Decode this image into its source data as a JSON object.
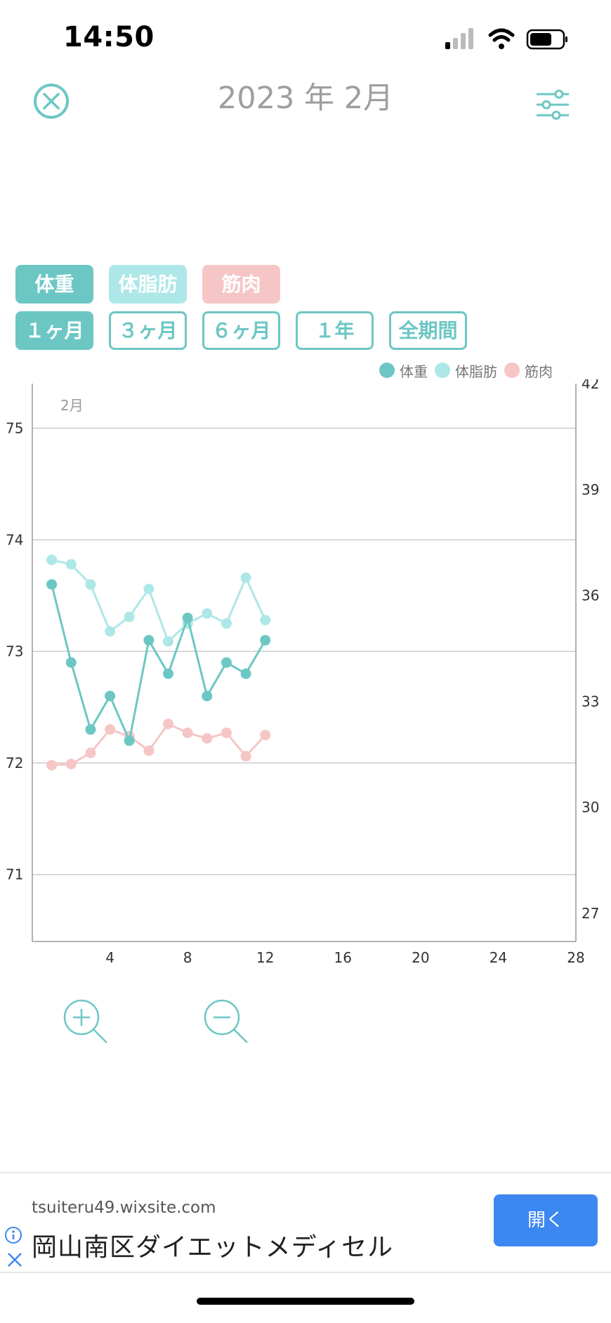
{
  "status_bar": {
    "time": "14:50"
  },
  "header": {
    "title": "2023 年 2月",
    "close_icon": "close-circle-icon",
    "filter_icon": "sliders-icon"
  },
  "metric_tabs": [
    {
      "label": "体重",
      "state": "selected",
      "color": "#6cc7c4"
    },
    {
      "label": "体脂肪",
      "state": "selected",
      "color": "#aee7e8"
    },
    {
      "label": "筋肉",
      "state": "selected",
      "color": "#f5c6c5"
    }
  ],
  "period_tabs": [
    {
      "label": "１ヶ月",
      "state": "selected"
    },
    {
      "label": "３ヶ月",
      "state": "unselected"
    },
    {
      "label": "６ヶ月",
      "state": "unselected"
    },
    {
      "label": "１年",
      "state": "unselected"
    },
    {
      "label": "全期間",
      "state": "unselected"
    }
  ],
  "legend": [
    {
      "label": "体重",
      "color": "#6cc7c4"
    },
    {
      "label": "体脂肪",
      "color": "#aee7e8"
    },
    {
      "label": "筋肉",
      "color": "#f5c6c5"
    }
  ],
  "chart_data": {
    "type": "line",
    "month_label": "2月",
    "x_ticks": [
      4,
      8,
      12,
      16,
      20,
      24,
      28
    ],
    "xlim": [
      0,
      28
    ],
    "ylim_left": [
      70.4,
      75.4
    ],
    "yticks_left": [
      71,
      72,
      73,
      74,
      75
    ],
    "ylim_right": [
      26.2,
      42.0
    ],
    "yticks_right": [
      27,
      30,
      33,
      36,
      39,
      42
    ],
    "grid": true,
    "series": [
      {
        "name": "体重",
        "axis": "left",
        "color": "#6cc7c4",
        "x": [
          1,
          2,
          3,
          4,
          5,
          6,
          7,
          8,
          9,
          10,
          11,
          12
        ],
        "values": [
          73.6,
          72.9,
          72.3,
          72.6,
          72.2,
          73.1,
          72.8,
          73.3,
          72.6,
          72.9,
          72.8,
          73.1
        ]
      },
      {
        "name": "体脂肪",
        "axis": "left",
        "color": "#aee7e8",
        "x": [
          1,
          2,
          3,
          4,
          5,
          6,
          7,
          8,
          9,
          10,
          11,
          12
        ],
        "values": [
          73.82,
          73.78,
          73.6,
          73.18,
          73.31,
          73.56,
          73.09,
          73.25,
          73.34,
          73.25,
          73.66,
          73.28
        ]
      },
      {
        "name": "筋肉",
        "axis": "left",
        "color": "#f5c6c5",
        "x": [
          1,
          2,
          3,
          4,
          5,
          6,
          7,
          8,
          9,
          10,
          11,
          12
        ],
        "values": [
          71.98,
          71.99,
          72.09,
          72.3,
          72.24,
          72.11,
          72.35,
          72.27,
          72.22,
          72.27,
          72.06,
          72.25
        ]
      }
    ]
  },
  "zoom": {
    "zoom_in_icon": "zoom-in-icon",
    "zoom_out_icon": "zoom-out-icon"
  },
  "ad": {
    "url": "tsuiteru49.wixsite.com",
    "title": "岡山南区ダイエットメディセル",
    "open_label": "開く",
    "info_icon": "info-icon",
    "close_icon": "close-icon"
  }
}
